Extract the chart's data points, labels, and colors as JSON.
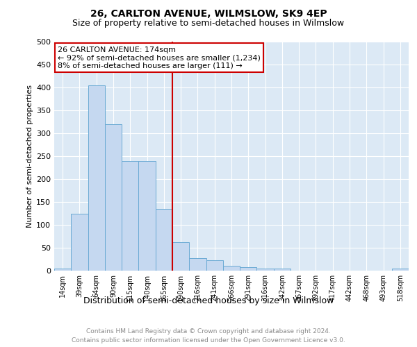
{
  "title": "26, CARLTON AVENUE, WILMSLOW, SK9 4EP",
  "subtitle": "Size of property relative to semi-detached houses in Wilmslow",
  "xlabel": "Distribution of semi-detached houses by size in Wilmslow",
  "ylabel": "Number of semi-detached properties",
  "footer_line1": "Contains HM Land Registry data © Crown copyright and database right 2024.",
  "footer_line2": "Contains public sector information licensed under the Open Government Licence v3.0.",
  "annotation_line1": "26 CARLTON AVENUE: 174sqm",
  "annotation_line2": "← 92% of semi-detached houses are smaller (1,234)",
  "annotation_line3": "8% of semi-detached houses are larger (111) →",
  "bin_labels": [
    "14sqm",
    "39sqm",
    "64sqm",
    "90sqm",
    "115sqm",
    "140sqm",
    "165sqm",
    "190sqm",
    "216sqm",
    "241sqm",
    "266sqm",
    "291sqm",
    "316sqm",
    "342sqm",
    "367sqm",
    "392sqm",
    "417sqm",
    "442sqm",
    "468sqm",
    "493sqm",
    "518sqm"
  ],
  "bar_values": [
    5,
    125,
    405,
    320,
    240,
    240,
    135,
    62,
    28,
    22,
    10,
    8,
    5,
    5,
    0,
    0,
    0,
    0,
    0,
    0,
    5
  ],
  "bar_color": "#c5d8f0",
  "bar_edge_color": "#6aaad4",
  "vline_color": "#cc0000",
  "vline_bar_index": 6,
  "ylim": [
    0,
    500
  ],
  "yticks": [
    0,
    50,
    100,
    150,
    200,
    250,
    300,
    350,
    400,
    450,
    500
  ],
  "plot_bg_color": "#dce9f5",
  "grid_color": "#ffffff",
  "annotation_box_facecolor": "#ffffff",
  "annotation_box_edgecolor": "#cc0000",
  "title_fontsize": 10,
  "subtitle_fontsize": 9,
  "ylabel_fontsize": 8,
  "xlabel_fontsize": 9,
  "footer_fontsize": 6.5,
  "ytick_fontsize": 8,
  "xtick_fontsize": 7,
  "annotation_fontsize": 8
}
